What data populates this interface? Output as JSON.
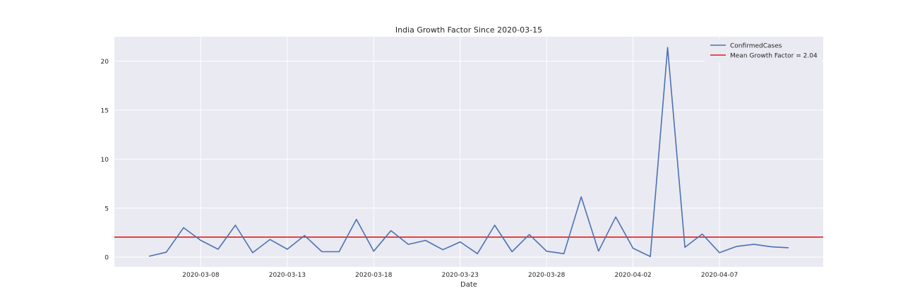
{
  "chart_data": {
    "type": "line",
    "title": "India Growth Factor Since 2020-03-15",
    "xlabel": "Date",
    "ylabel": "",
    "x_start": "2020-03-05",
    "xlim": [
      "2020-03-03",
      "2020-04-13"
    ],
    "ylim": [
      -1,
      22.5
    ],
    "xticks": [
      "2020-03-08",
      "2020-03-13",
      "2020-03-18",
      "2020-03-23",
      "2020-03-28",
      "2020-04-02",
      "2020-04-07"
    ],
    "yticks": [
      0,
      5,
      10,
      15,
      20
    ],
    "grid": true,
    "legend_position": "top-right",
    "series": [
      {
        "name": "ConfirmedCases",
        "color": "#4c72b0",
        "values": [
          0.08,
          0.5,
          3.0,
          1.7,
          0.8,
          3.25,
          0.45,
          1.8,
          0.8,
          2.2,
          0.55,
          0.55,
          3.85,
          0.6,
          2.7,
          1.3,
          1.7,
          0.75,
          1.55,
          0.35,
          3.25,
          0.55,
          2.3,
          0.6,
          0.35,
          6.15,
          0.6,
          4.1,
          0.9,
          0.05,
          21.4,
          1.0,
          2.35,
          0.45,
          1.1,
          1.3,
          1.05,
          0.95
        ]
      }
    ],
    "reference_lines": [
      {
        "name": "Mean Growth Factor = 2.04",
        "value": 2.04,
        "color": "#e41a1c"
      }
    ]
  }
}
